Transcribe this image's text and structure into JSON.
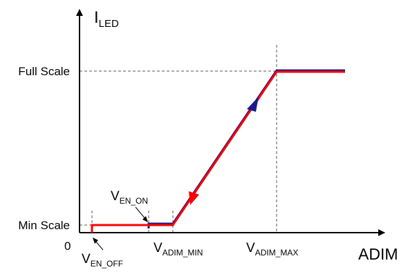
{
  "diagram": {
    "y_axis": {
      "main": "I",
      "sub": "LED"
    },
    "x_axis": {
      "label": "ADIM"
    },
    "origin_label": "0",
    "y_levels": {
      "full_scale": "Full Scale",
      "min_scale": "Min Scale"
    },
    "x_markers": {
      "en_on": {
        "main": "V",
        "sub": "EN_ON"
      },
      "en_off": {
        "main": "V",
        "sub": "EN_OFF"
      },
      "adim_min": {
        "main": "V",
        "sub": "ADIM_MIN"
      },
      "adim_max": {
        "main": "V",
        "sub": "ADIM_MAX"
      }
    },
    "colors": {
      "increasing_curve": "#1a1a8c",
      "decreasing_curve": "#ff0000",
      "axes": "#000000",
      "guides": "#555555"
    }
  }
}
